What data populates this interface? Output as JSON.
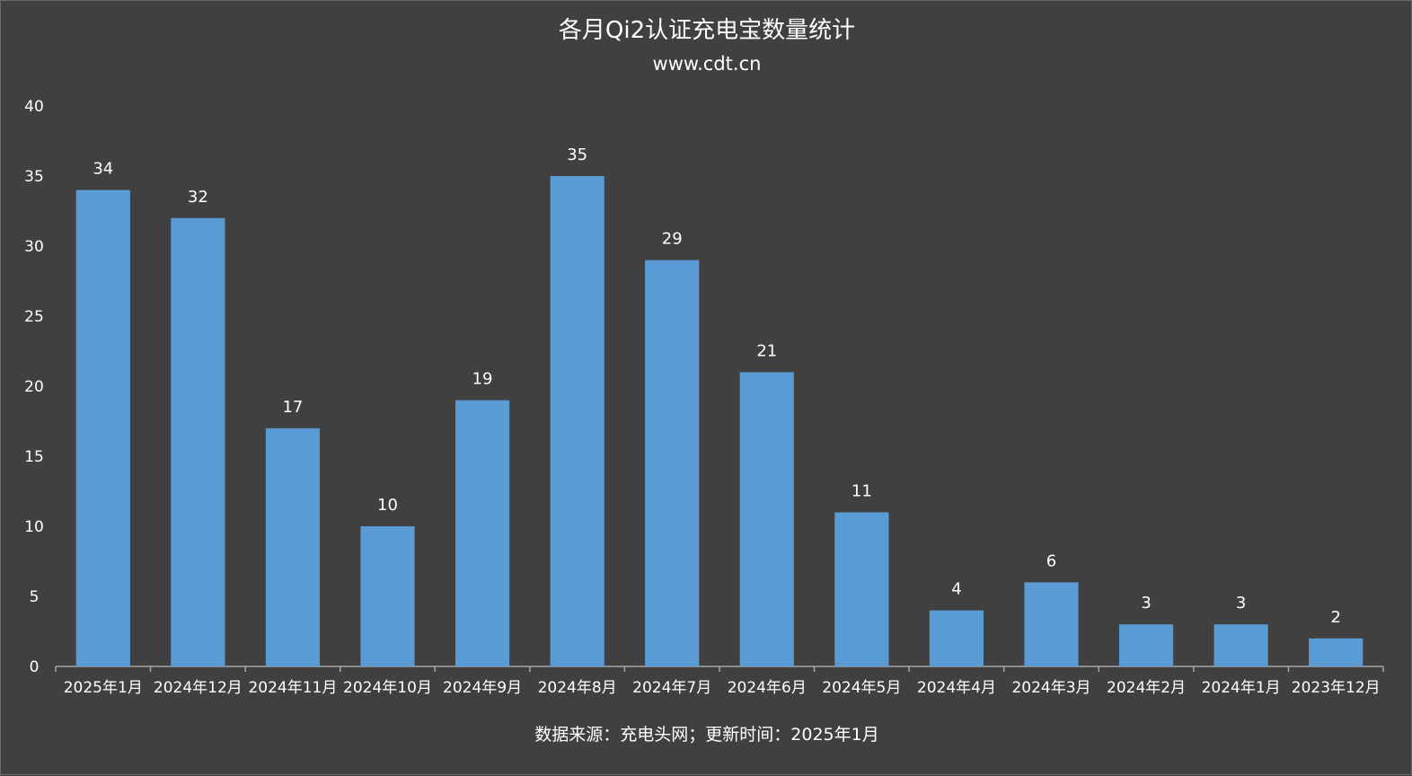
{
  "chart_data": {
    "type": "bar",
    "title": "各月Qi2认证充电宝数量统计",
    "subtitle": "www.cdt.cn",
    "source": "数据来源：充电头网；更新时间：2025年1月",
    "xlabel": "",
    "ylabel": "",
    "ylim": [
      0,
      40
    ],
    "yticks": [
      0,
      5,
      10,
      15,
      20,
      25,
      30,
      35,
      40
    ],
    "grid": false,
    "legend": "none",
    "bar_color": "#5b9bd5",
    "categories": [
      "2025年1月",
      "2024年12月",
      "2024年11月",
      "2024年10月",
      "2024年9月",
      "2024年8月",
      "2024年7月",
      "2024年6月",
      "2024年5月",
      "2024年4月",
      "2024年3月",
      "2024年2月",
      "2024年1月",
      "2023年12月"
    ],
    "values": [
      34,
      32,
      17,
      10,
      19,
      35,
      29,
      21,
      11,
      4,
      6,
      3,
      3,
      2
    ],
    "data_labels": true
  }
}
